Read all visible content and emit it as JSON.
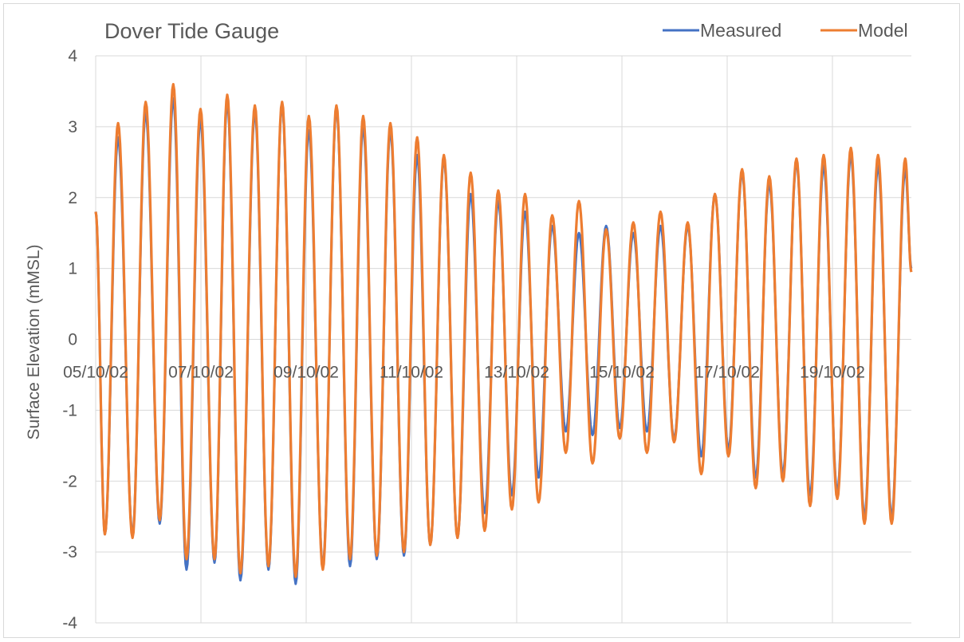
{
  "chart_data": {
    "type": "line",
    "title": "Dover Tide Gauge",
    "xlabel": "",
    "ylabel": "Surface Elevation (mMSL)",
    "ylim": [
      -4,
      4
    ],
    "yticks": [
      -4,
      -3,
      -2,
      -1,
      0,
      1,
      2,
      3,
      4
    ],
    "x_axis": {
      "type": "date",
      "range": [
        "05/10/02 00:00",
        "20/10/02 12:00"
      ],
      "tick_labels": [
        "05/10/02",
        "07/10/02",
        "09/10/02",
        "11/10/02",
        "13/10/02",
        "15/10/02",
        "17/10/02",
        "19/10/02"
      ]
    },
    "gridlines": {
      "vertical": true,
      "horizontal": true
    },
    "legend": {
      "position": "top-right"
    },
    "series": [
      {
        "name": "Measured",
        "color": "#4472c4",
        "x": [
          "05/10/02 00:00",
          "05/10/02 04:12",
          "05/10/02 10:12",
          "05/10/02 16:48",
          "05/10/02 22:48",
          "06/10/02 05:12",
          "06/10/02 11:24",
          "06/10/02 17:24",
          "06/10/02 23:48",
          "07/10/02 06:12",
          "07/10/02 12:00",
          "07/10/02 18:00",
          "08/10/02 00:36",
          "08/10/02 06:48",
          "08/10/02 13:00",
          "08/10/02 19:12",
          "09/10/02 01:12",
          "09/10/02 07:36",
          "09/10/02 13:48",
          "09/10/02 20:00",
          "10/10/02 02:00",
          "10/10/02 08:12",
          "10/10/02 14:24",
          "10/10/02 20:36",
          "11/10/02 02:36",
          "11/10/02 08:36",
          "11/10/02 14:48",
          "11/10/02 21:00",
          "12/10/02 03:00",
          "12/10/02 09:24",
          "12/10/02 15:36",
          "12/10/02 21:48",
          "13/10/02 03:48",
          "13/10/02 10:00",
          "13/10/02 16:12",
          "13/10/02 22:24",
          "14/10/02 04:24",
          "14/10/02 10:36",
          "14/10/02 16:48",
          "14/10/02 23:00",
          "15/10/02 05:12",
          "15/10/02 11:24",
          "15/10/02 17:36",
          "15/10/02 23:48",
          "16/10/02 06:00",
          "16/10/02 12:12",
          "16/10/02 18:24",
          "17/10/02 00:36",
          "17/10/02 06:48",
          "17/10/02 13:00",
          "17/10/02 19:12",
          "18/10/02 01:24",
          "18/10/02 07:36",
          "18/10/02 13:48",
          "18/10/02 20:00",
          "19/10/02 02:12",
          "19/10/02 08:24",
          "19/10/02 14:36",
          "19/10/02 20:48",
          "20/10/02 03:00",
          "20/10/02 09:12",
          "20/10/02 12:00"
        ],
        "y": [
          1.8,
          -2.75,
          2.85,
          -2.75,
          3.2,
          -2.6,
          3.4,
          -3.25,
          3.1,
          -3.15,
          3.35,
          -3.4,
          3.2,
          -3.25,
          3.3,
          -3.45,
          2.95,
          -3.2,
          3.25,
          -3.2,
          3.0,
          -3.1,
          2.95,
          -3.05,
          2.6,
          -2.9,
          2.55,
          -2.8,
          2.05,
          -2.45,
          1.95,
          -2.2,
          1.8,
          -1.95,
          1.6,
          -1.3,
          1.5,
          -1.35,
          1.6,
          -1.25,
          1.5,
          -1.3,
          1.6,
          -1.4,
          1.6,
          -1.65,
          2.05,
          -1.55,
          2.35,
          -1.95,
          2.2,
          -1.9,
          2.5,
          -2.2,
          2.45,
          -2.15,
          2.6,
          -2.5,
          2.45,
          -2.5,
          2.4,
          1.0
        ]
      },
      {
        "name": "Model",
        "color": "#ed7d31",
        "x": [
          "05/10/02 00:00",
          "05/10/02 04:12",
          "05/10/02 10:12",
          "05/10/02 16:48",
          "05/10/02 22:48",
          "06/10/02 05:12",
          "06/10/02 11:24",
          "06/10/02 17:24",
          "06/10/02 23:48",
          "07/10/02 06:12",
          "07/10/02 12:00",
          "07/10/02 18:00",
          "08/10/02 00:36",
          "08/10/02 06:48",
          "08/10/02 13:00",
          "08/10/02 19:12",
          "09/10/02 01:12",
          "09/10/02 07:36",
          "09/10/02 13:48",
          "09/10/02 20:00",
          "10/10/02 02:00",
          "10/10/02 08:12",
          "10/10/02 14:24",
          "10/10/02 20:36",
          "11/10/02 02:36",
          "11/10/02 08:36",
          "11/10/02 14:48",
          "11/10/02 21:00",
          "12/10/02 03:00",
          "12/10/02 09:24",
          "12/10/02 15:36",
          "12/10/02 21:48",
          "13/10/02 03:48",
          "13/10/02 10:00",
          "13/10/02 16:12",
          "13/10/02 22:24",
          "14/10/02 04:24",
          "14/10/02 10:36",
          "14/10/02 16:48",
          "14/10/02 23:00",
          "15/10/02 05:12",
          "15/10/02 11:24",
          "15/10/02 17:36",
          "15/10/02 23:48",
          "16/10/02 06:00",
          "16/10/02 12:12",
          "16/10/02 18:24",
          "17/10/02 00:36",
          "17/10/02 06:48",
          "17/10/02 13:00",
          "17/10/02 19:12",
          "18/10/02 01:24",
          "18/10/02 07:36",
          "18/10/02 13:48",
          "18/10/02 20:00",
          "19/10/02 02:12",
          "19/10/02 08:24",
          "19/10/02 14:36",
          "19/10/02 20:48",
          "20/10/02 03:00",
          "20/10/02 09:12",
          "20/10/02 12:00"
        ],
        "y": [
          1.8,
          -2.75,
          3.05,
          -2.8,
          3.35,
          -2.55,
          3.6,
          -3.1,
          3.25,
          -3.1,
          3.45,
          -3.3,
          3.3,
          -3.2,
          3.35,
          -3.35,
          3.15,
          -3.25,
          3.3,
          -3.1,
          3.15,
          -3.05,
          3.05,
          -3.0,
          2.85,
          -2.9,
          2.6,
          -2.8,
          2.35,
          -2.7,
          2.1,
          -2.4,
          2.05,
          -2.3,
          1.75,
          -1.6,
          1.95,
          -1.75,
          1.55,
          -1.4,
          1.65,
          -1.6,
          1.8,
          -1.45,
          1.65,
          -1.9,
          2.05,
          -1.65,
          2.4,
          -2.1,
          2.3,
          -2.0,
          2.55,
          -2.35,
          2.6,
          -2.25,
          2.7,
          -2.6,
          2.6,
          -2.6,
          2.55,
          0.95
        ]
      }
    ]
  }
}
